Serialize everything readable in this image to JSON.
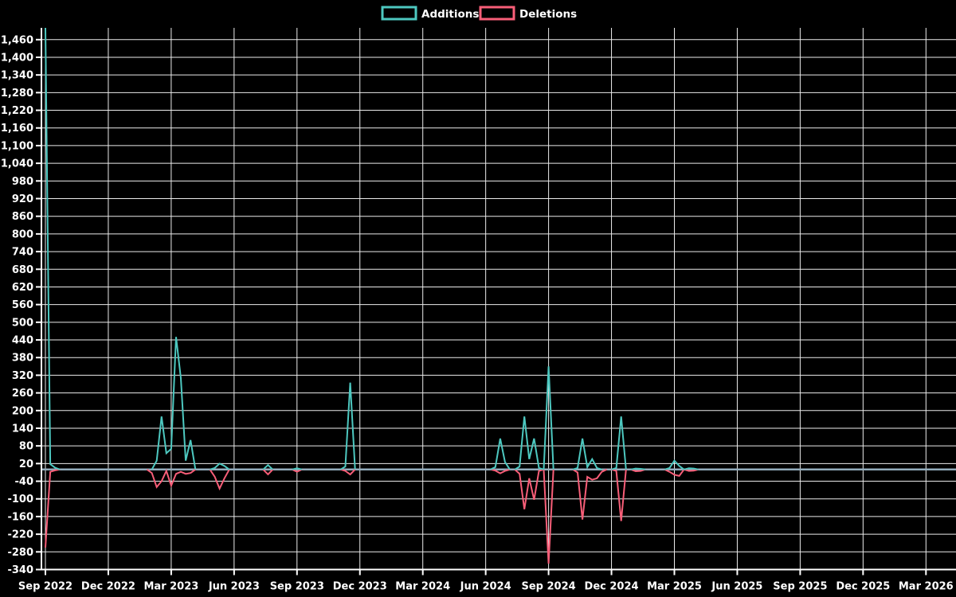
{
  "page": {
    "background_color": "#000000",
    "text_color": "#ffffff"
  },
  "chart_data": {
    "type": "line",
    "title": "",
    "legend_position": "top-center",
    "grid": true,
    "series": [
      {
        "name": "Additions",
        "color": "#4dc8c0",
        "key": "additions"
      },
      {
        "name": "Deletions",
        "color": "#f85e78",
        "key": "deletions"
      }
    ],
    "baseline_color": "#93acbc",
    "grid_color": "#ebebeb",
    "axis_color": "#ffffff",
    "x_axis": {
      "tick_labels": [
        "Sep 2022",
        "Dec 2022",
        "Mar 2023",
        "Jun 2023",
        "Sep 2023",
        "Dec 2023",
        "Mar 2024",
        "Jun 2024",
        "Sep 2024",
        "Dec 2024",
        "Mar 2025",
        "Jun 2025",
        "Sep 2025",
        "Dec 2025",
        "Mar 2026"
      ],
      "weeks_per_quarter": 13,
      "weeks_total": 190
    },
    "y_axis": {
      "min": -340,
      "max": 1500,
      "tick_values": [
        -340,
        -280,
        -220,
        -160,
        -100,
        -40,
        20,
        80,
        140,
        200,
        260,
        320,
        380,
        440,
        500,
        560,
        620,
        680,
        740,
        800,
        860,
        920,
        980,
        1040,
        1100,
        1160,
        1220,
        1280,
        1340,
        1400,
        1460
      ],
      "tick_labels": [
        "-340",
        "-280",
        "-220",
        "-160",
        "-100",
        "-40",
        "20",
        "80",
        "140",
        "200",
        "260",
        "320",
        "380",
        "440",
        "500",
        "560",
        "620",
        "680",
        "740",
        "800",
        "860",
        "920",
        "980",
        "1,040",
        "1,100",
        "1,160",
        "1,220",
        "1,280",
        "1,340",
        "1,400",
        "1,460"
      ]
    },
    "points": [
      {
        "week": 0,
        "additions": 1500,
        "deletions": -265
      },
      {
        "week": 1,
        "additions": 18,
        "deletions": -8
      },
      {
        "week": 2,
        "additions": 6,
        "deletions": -3
      },
      {
        "week": 22,
        "additions": 0,
        "deletions": -12
      },
      {
        "week": 23,
        "additions": 30,
        "deletions": -60
      },
      {
        "week": 24,
        "additions": 180,
        "deletions": -40
      },
      {
        "week": 25,
        "additions": 55,
        "deletions": -5
      },
      {
        "week": 26,
        "additions": 70,
        "deletions": -55
      },
      {
        "week": 27,
        "additions": 450,
        "deletions": -15
      },
      {
        "week": 28,
        "additions": 310,
        "deletions": -8
      },
      {
        "week": 29,
        "additions": 30,
        "deletions": -15
      },
      {
        "week": 30,
        "additions": 100,
        "deletions": -12
      },
      {
        "week": 35,
        "additions": 5,
        "deletions": -25
      },
      {
        "week": 36,
        "additions": 20,
        "deletions": -65
      },
      {
        "week": 37,
        "additions": 12,
        "deletions": -30
      },
      {
        "week": 46,
        "additions": 15,
        "deletions": -17
      },
      {
        "week": 52,
        "additions": 4,
        "deletions": -8
      },
      {
        "week": 62,
        "additions": 10,
        "deletions": -5
      },
      {
        "week": 63,
        "additions": 295,
        "deletions": -17
      },
      {
        "week": 93,
        "additions": 8,
        "deletions": -4
      },
      {
        "week": 94,
        "additions": 105,
        "deletions": -13
      },
      {
        "week": 95,
        "additions": 25,
        "deletions": -5
      },
      {
        "week": 98,
        "additions": 10,
        "deletions": -15
      },
      {
        "week": 99,
        "additions": 180,
        "deletions": -135
      },
      {
        "week": 100,
        "additions": 35,
        "deletions": -30
      },
      {
        "week": 101,
        "additions": 105,
        "deletions": -103
      },
      {
        "week": 102,
        "additions": 5,
        "deletions": -5
      },
      {
        "week": 104,
        "additions": 350,
        "deletions": -320
      },
      {
        "week": 110,
        "additions": 5,
        "deletions": -10
      },
      {
        "week": 111,
        "additions": 105,
        "deletions": -170
      },
      {
        "week": 112,
        "additions": 8,
        "deletions": -25
      },
      {
        "week": 113,
        "additions": 35,
        "deletions": -35
      },
      {
        "week": 114,
        "additions": 5,
        "deletions": -30
      },
      {
        "week": 115,
        "additions": 0,
        "deletions": -8
      },
      {
        "week": 118,
        "additions": 5,
        "deletions": -5
      },
      {
        "week": 119,
        "additions": 180,
        "deletions": -175
      },
      {
        "week": 122,
        "additions": 3,
        "deletions": -6
      },
      {
        "week": 123,
        "additions": 2,
        "deletions": -5
      },
      {
        "week": 129,
        "additions": 5,
        "deletions": -8
      },
      {
        "week": 130,
        "additions": 30,
        "deletions": -18
      },
      {
        "week": 131,
        "additions": 12,
        "deletions": -22
      },
      {
        "week": 133,
        "additions": 4,
        "deletions": -5
      },
      {
        "week": 134,
        "additions": 3,
        "deletions": -4
      }
    ]
  }
}
